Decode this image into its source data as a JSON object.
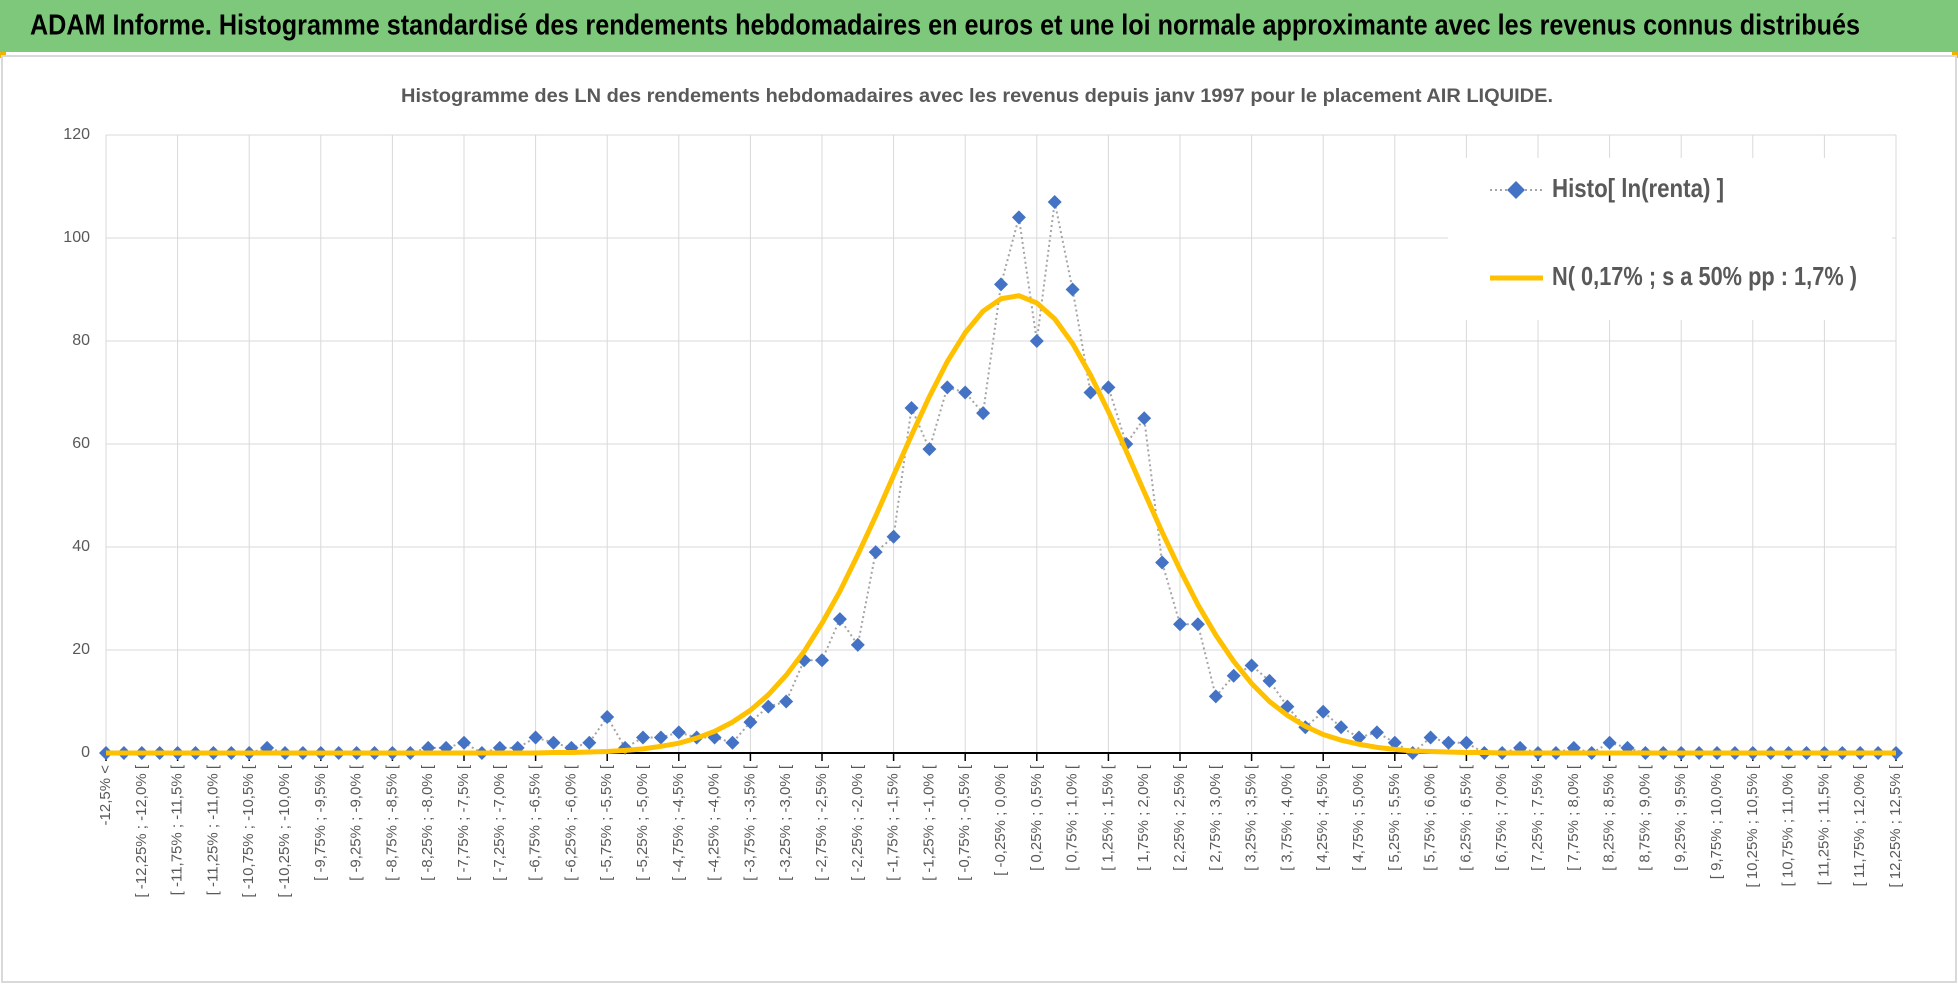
{
  "banner": {
    "title": "ADAM Informe. Histogramme standardisé des rendements hebdomadaires en euros et une loi normale approximante avec les revenus connus distribués"
  },
  "chart_data": {
    "type": "line",
    "title": "Histogramme des LN des rendements hebdomadaires avec les revenus depuis janv 1997 pour le placement AIR LIQUIDE.",
    "categories": [
      "-12,5% <",
      null,
      "[ -12,25% ; -12,0% [",
      null,
      "[ -11,75% ; -11,5% [",
      null,
      "[ -11,25% ; -11,0% [",
      null,
      "[ -10,75% ; -10,5% [",
      null,
      "[ -10,25% ; -10,0% [",
      null,
      "[ -9,75% ; -9,5% [",
      null,
      "[ -9,25% ; -9,0% [",
      null,
      "[ -8,75% ; -8,5% [",
      null,
      "[ -8,25% ; -8,0% [",
      null,
      "[ -7,75% ; -7,5% [",
      null,
      "[ -7,25% ; -7,0% [",
      null,
      "[ -6,75% ; -6,5% [",
      null,
      "[ -6,25% ; -6,0% [",
      null,
      "[ -5,75% ; -5,5% [",
      null,
      "[ -5,25% ; -5,0% [",
      null,
      "[ -4,75% ; -4,5% [",
      null,
      "[ -4,25% ; -4,0% [",
      null,
      "[ -3,75% ; -3,5% [",
      null,
      "[ -3,25% ; -3,0% [",
      null,
      "[ -2,75% ; -2,5% [",
      null,
      "[ -2,25% ; -2,0% [",
      null,
      "[ -1,75% ; -1,5% [",
      null,
      "[ -1,25% ; -1,0% [",
      null,
      "[ -0,75% ; -0,5% [",
      null,
      "[ -0,25% ; 0,0% [",
      null,
      "[ 0,25% ; 0,5% [",
      null,
      "[ 0,75% ; 1,0% [",
      null,
      "[ 1,25% ; 1,5% [",
      null,
      "[ 1,75% ; 2,0% [",
      null,
      "[ 2,25% ; 2,5% [",
      null,
      "[ 2,75% ; 3,0% [",
      null,
      "[ 3,25% ; 3,5% [",
      null,
      "[ 3,75% ; 4,0% [",
      null,
      "[ 4,25% ; 4,5% [",
      null,
      "[ 4,75% ; 5,0% [",
      null,
      "[ 5,25% ; 5,5% [",
      null,
      "[ 5,75% ; 6,0% [",
      null,
      "[ 6,25% ; 6,5% [",
      null,
      "[ 6,75% ; 7,0% [",
      null,
      "[ 7,25% ; 7,5% [",
      null,
      "[ 7,75% ; 8,0% [",
      null,
      "[ 8,25% ; 8,5% [",
      null,
      "[ 8,75% ; 9,0% [",
      null,
      "[ 9,25% ; 9,5% [",
      null,
      "[ 9,75% ; 10,0% [",
      null,
      "[ 10,25% ; 10,5% [",
      null,
      "[ 10,75% ; 11,0% [",
      null,
      "[ 11,25% ; 11,5% [",
      null,
      "[ 11,75% ; 12,0% [",
      null,
      "[ 12,25% ; 12,5% ["
    ],
    "series": [
      {
        "name": "Histo[ ln(renta) ]",
        "color": "#4472c4",
        "line_color": "#a5a5a5",
        "values": [
          0,
          0,
          0,
          0,
          0,
          0,
          0,
          0,
          0,
          1,
          0,
          0,
          0,
          0,
          0,
          0,
          0,
          0,
          1,
          1,
          2,
          0,
          1,
          1,
          3,
          2,
          1,
          2,
          7,
          1,
          3,
          3,
          4,
          3,
          3,
          2,
          6,
          9,
          10,
          18,
          18,
          26,
          21,
          39,
          42,
          67,
          59,
          71,
          70,
          66,
          91,
          104,
          80,
          107,
          90,
          70,
          71,
          60,
          65,
          37,
          25,
          25,
          11,
          15,
          17,
          14,
          9,
          5,
          8,
          5,
          3,
          4,
          2,
          0,
          3,
          2,
          2,
          0,
          0,
          1,
          0,
          0,
          1,
          0,
          2,
          1,
          0,
          0,
          0,
          0,
          0,
          0,
          0,
          0,
          0,
          0,
          0,
          0,
          0,
          0,
          0
        ]
      },
      {
        "name": "N( 0,17% ; s a 50% pp : 1,7% )",
        "color": "#ffc000",
        "values": [
          0,
          0,
          0,
          0,
          0,
          0,
          0,
          0,
          0,
          0,
          0,
          0,
          0,
          0,
          0,
          0,
          0,
          0,
          0,
          0,
          0,
          0,
          0,
          0,
          0,
          0.1,
          0.1,
          0.2,
          0.3,
          0.5,
          0.8,
          1.3,
          1.9,
          2.9,
          4.2,
          6.0,
          8.3,
          11.3,
          15.1,
          19.7,
          25.2,
          31.4,
          38.5,
          46.0,
          53.9,
          61.7,
          69.2,
          76.0,
          81.6,
          85.8,
          88.2,
          88.8,
          87.4,
          84.3,
          79.5,
          73.4,
          66.3,
          58.6,
          50.7,
          42.9,
          35.6,
          28.8,
          22.9,
          17.8,
          13.5,
          10.0,
          7.3,
          5.2,
          3.6,
          2.5,
          1.7,
          1.1,
          0.7,
          0.4,
          0.3,
          0.2,
          0.1,
          0.1,
          0,
          0,
          0,
          0,
          0,
          0,
          0,
          0,
          0,
          0,
          0,
          0,
          0,
          0,
          0,
          0,
          0,
          0,
          0,
          0,
          0,
          0,
          0
        ]
      }
    ],
    "ylim": [
      0,
      120
    ],
    "yticks": [
      0,
      20,
      40,
      60,
      80,
      100,
      120
    ],
    "grid": true,
    "legend": "top-right"
  }
}
